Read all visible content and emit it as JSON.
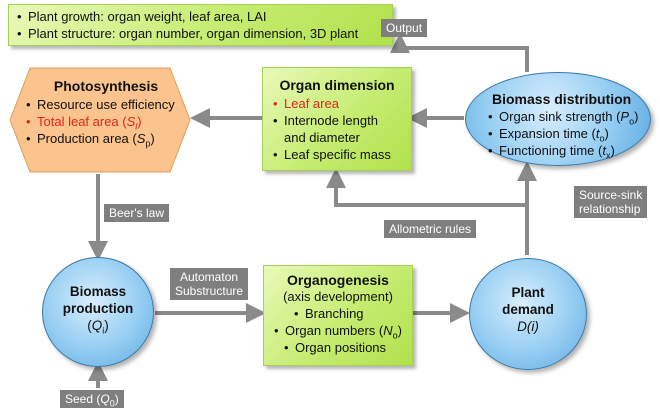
{
  "output_summary": {
    "items": [
      "Plant growth: organ weight, leaf area, LAI",
      "Plant structure: organ number, organ dimension, 3D plant"
    ]
  },
  "photosynthesis": {
    "title": "Photosynthesis",
    "items": [
      "Resource use efficiency",
      "Total leaf area",
      "Production area"
    ],
    "total_leaf_area_symbol": "S",
    "total_leaf_area_sub": "l",
    "production_area_symbol": "S",
    "production_area_sub": "p"
  },
  "organ_dimension": {
    "title": "Organ dimension",
    "items": [
      "Leaf area",
      "Internode length and diameter",
      "Leaf specific mass"
    ]
  },
  "biomass_distribution": {
    "title": "Biomass distribution",
    "items": [
      "Organ sink strength",
      "Expansion time",
      "Functioning time"
    ],
    "sink_symbol": "P",
    "sink_sub": "o",
    "expansion_symbol": "t",
    "expansion_sub": "o",
    "functioning_symbol": "t",
    "functioning_sub": "x"
  },
  "biomass_production": {
    "line1": "Biomass",
    "line2": "production",
    "symbol": "Q",
    "sub": "i"
  },
  "organogenesis": {
    "title": "Organogenesis",
    "subtitle": "(axis development)",
    "items": [
      "Branching",
      "Organ numbers",
      "Organ positions"
    ],
    "numbers_symbol": "N",
    "numbers_sub": "o"
  },
  "plant_demand": {
    "line1": "Plant",
    "line2": "demand",
    "symbol": "D(i)"
  },
  "labels": {
    "output": "Output",
    "beers_law": "Beer's law",
    "automaton_1": "Automaton",
    "automaton_2": "Substructure",
    "allometric": "Allometric rules",
    "source_sink_1": "Source-sink",
    "source_sink_2": "relationship",
    "seed": "Seed",
    "seed_symbol": "Q",
    "seed_sub": "0"
  },
  "colors": {
    "green_box": "#c5ec71",
    "blue_circle": "#95cdf2",
    "orange_hexagon": "#fbc38d",
    "label_grey": "#7f7f7f",
    "arrow_grey": "#8a8a8a",
    "highlight_red": "#e0261f"
  }
}
